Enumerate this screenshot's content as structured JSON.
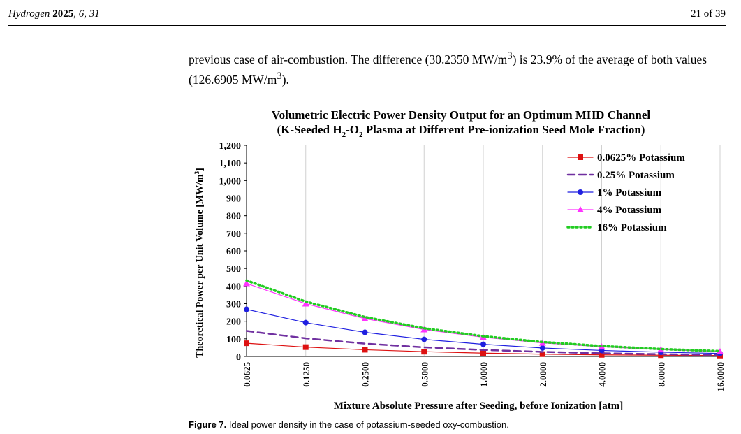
{
  "header": {
    "journal": "Hydrogen",
    "year": "2025",
    "volume_issue": ", 6, 31",
    "page": "21 of 39"
  },
  "paragraph": {
    "before": "previous case of air-combustion. The difference (30.2350 MW/m",
    "sup1": "3",
    "middle": ") is 23.9% of the average of both values (126.6905 MW/m",
    "sup2": "3",
    "after": ")."
  },
  "caption": {
    "label": "Figure 7.",
    "text": "Ideal power density in the case of potassium-seeded oxy-combustion."
  },
  "chart_data": {
    "type": "line",
    "title_line1": "Volumetric Electric Power Density Output for an Optimum MHD Channel",
    "title_line2_parts": [
      "(K-Seeded H",
      "2",
      "-O",
      "2",
      " Plasma at Different Pre-ionization Seed Mole Fraction)"
    ],
    "xlabel": "Mixture Absolute Pressure after Seeding, before Ionization [atm]",
    "ylabel_text": "Theoretical Power per Unit Volume [MW/m",
    "ylabel_sup": "3",
    "ylabel_end": "]",
    "x_scale": "log2",
    "categories": [
      "0.0625",
      "0.1250",
      "0.2500",
      "0.5000",
      "1.0000",
      "2.0000",
      "4.0000",
      "8.0000",
      "16.0000"
    ],
    "x": [
      0.0625,
      0.125,
      0.25,
      0.5,
      1,
      2,
      4,
      8,
      16
    ],
    "ylim": [
      0,
      1200
    ],
    "yticks": [
      "0",
      "100",
      "200",
      "300",
      "400",
      "500",
      "600",
      "700",
      "800",
      "900",
      "1,000",
      "1,100",
      "1,200"
    ],
    "grid": "vertical",
    "legend_position": "top-right",
    "series": [
      {
        "name": "0.0625% Potassium",
        "color": "#dd1111",
        "marker": "square",
        "dash": "solid",
        "values": [
          75,
          53,
          38,
          27,
          19,
          13,
          9,
          7,
          5
        ]
      },
      {
        "name": "0.25% Potassium",
        "color": "#7030a0",
        "marker": "none",
        "dash": "dashed",
        "values": [
          145,
          103,
          73,
          52,
          37,
          26,
          18,
          13,
          9
        ]
      },
      {
        "name": "1% Potassium",
        "color": "#1f1fe0",
        "marker": "circle",
        "dash": "solid",
        "values": [
          268,
          192,
          137,
          97,
          69,
          48,
          34,
          24,
          17
        ]
      },
      {
        "name": "4% Potassium",
        "color": "#ff33ff",
        "marker": "triangle",
        "dash": "solid",
        "values": [
          415,
          300,
          215,
          153,
          109,
          77,
          55,
          39,
          28
        ]
      },
      {
        "name": "16% Potassium",
        "color": "#22cc22",
        "marker": "none",
        "dash": "dotted",
        "values": [
          432,
          312,
          224,
          160,
          115,
          82,
          59,
          42,
          30
        ]
      }
    ]
  }
}
